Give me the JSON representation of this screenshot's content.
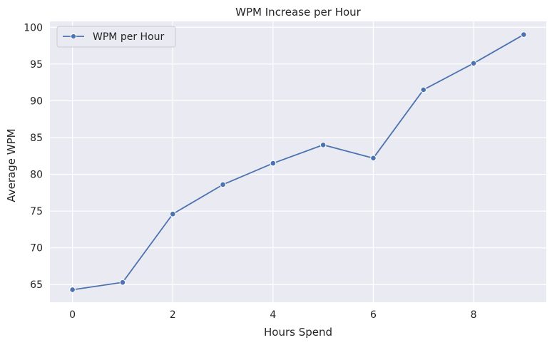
{
  "chart_data": {
    "type": "line",
    "title": "WPM Increase per Hour",
    "xlabel": "Hours Spend",
    "ylabel": "Average WPM",
    "xlim": [
      -0.45,
      9.45
    ],
    "ylim": [
      62.6,
      100.8
    ],
    "xticks": [
      0,
      2,
      4,
      6,
      8
    ],
    "yticks": [
      65,
      70,
      75,
      80,
      85,
      90,
      95,
      100
    ],
    "grid": true,
    "legend_position": "top-left",
    "series": [
      {
        "name": "WPM per Hour",
        "color": "#4c72b0",
        "marker": "circle",
        "x": [
          0,
          1,
          2,
          3,
          4,
          5,
          6,
          7,
          8,
          9
        ],
        "y": [
          64.3,
          65.3,
          74.6,
          78.6,
          81.5,
          84.0,
          82.2,
          91.5,
          95.1,
          99.0
        ]
      }
    ]
  }
}
